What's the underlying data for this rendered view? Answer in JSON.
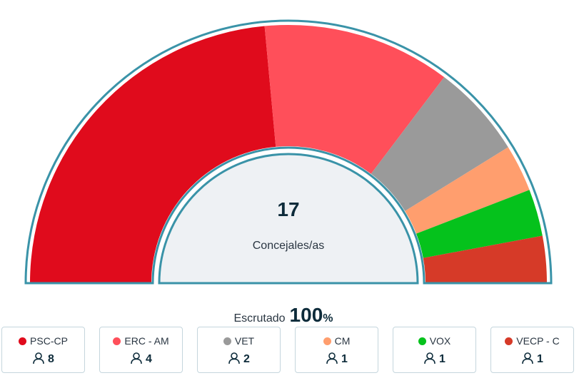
{
  "chart_data": {
    "type": "pie",
    "subtype": "half-donut",
    "total": 17,
    "total_label": "Concejales/as",
    "series": [
      {
        "name": "PSC-CP",
        "value": 8,
        "color": "#e00b1c"
      },
      {
        "name": "ERC - AM",
        "value": 4,
        "color": "#ff4f5a"
      },
      {
        "name": "VET",
        "value": 2,
        "color": "#9a9a9a"
      },
      {
        "name": "CM",
        "value": 1,
        "color": "#ff9e6e"
      },
      {
        "name": "VOX",
        "value": 1,
        "color": "#05c21c"
      },
      {
        "name": "VECP - C",
        "value": 1,
        "color": "#d63a28"
      }
    ]
  },
  "scrutiny": {
    "label": "Escrutado",
    "value": "100",
    "unit": "%"
  },
  "colors": {
    "outline": "#3a93a8",
    "center_fill": "#eef1f4",
    "total_text": "#0d2b3a"
  },
  "icons": {
    "seats": "user-icon"
  }
}
